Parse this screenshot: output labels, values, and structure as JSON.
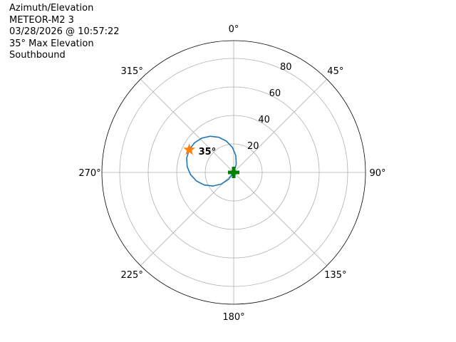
{
  "header": {
    "lines": [
      "Azimuth/Elevation",
      "METEOR-M2 3",
      "03/28/2026 @ 10:57:22",
      "35° Max Elevation",
      "Southbound"
    ]
  },
  "chart_data": {
    "type": "line",
    "projection": "polar",
    "theta_zero": "north",
    "theta_direction": "clockwise",
    "theta_ticks": [
      0,
      45,
      90,
      135,
      180,
      225,
      270,
      315
    ],
    "theta_tick_labels": [
      "0°",
      "45°",
      "90°",
      "135°",
      "180°",
      "225°",
      "270°",
      "315°"
    ],
    "r_ticks": [
      20,
      40,
      60,
      80
    ],
    "r_tick_labels": [
      "20",
      "40",
      "60",
      "80"
    ],
    "rlim": [
      0,
      92.5
    ],
    "grid": true,
    "series": [
      {
        "color": "#1f77b4",
        "azimuth": [
          207,
          217,
          227,
          237,
          247,
          257,
          267,
          277,
          287,
          297,
          307,
          317,
          327,
          337,
          347,
          357,
          7,
          17,
          27
        ],
        "r": [
          0,
          6.1,
          12.0,
          17.5,
          22.5,
          26.8,
          30.3,
          32.9,
          34.5,
          35,
          34.5,
          32.9,
          30.3,
          26.8,
          22.5,
          17.5,
          12.0,
          6.1,
          0
        ]
      }
    ],
    "markers": [
      {
        "kind": "star",
        "color": "#ff7f0e",
        "azimuth": 297,
        "r": 35,
        "label": "35°"
      },
      {
        "kind": "plus",
        "color": "#008000",
        "azimuth": 0,
        "r": 0
      }
    ]
  }
}
